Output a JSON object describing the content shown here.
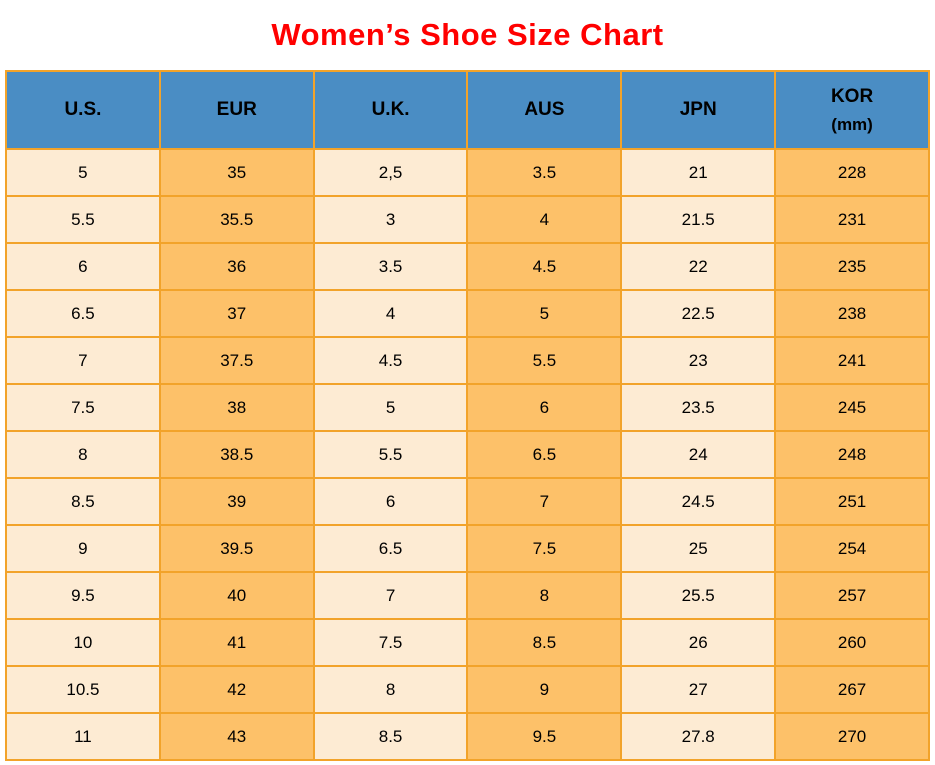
{
  "title": "Women’s Shoe Size Chart",
  "colors": {
    "title": "#ff0000",
    "header_bg": "#4a8dc4",
    "grid": "#f2a32a",
    "col_light": "#fdebd3",
    "col_dark": "#fdc169",
    "text": "#000000",
    "page_bg": "#ffffff"
  },
  "table": {
    "columns": [
      {
        "label": "U.S.",
        "sublabel": ""
      },
      {
        "label": "EUR",
        "sublabel": ""
      },
      {
        "label": "U.K.",
        "sublabel": ""
      },
      {
        "label": "AUS",
        "sublabel": ""
      },
      {
        "label": "JPN",
        "sublabel": ""
      },
      {
        "label": "KOR",
        "sublabel": "(mm)"
      }
    ],
    "rows": [
      [
        "5",
        "35",
        "2,5",
        "3.5",
        "21",
        "228"
      ],
      [
        "5.5",
        "35.5",
        "3",
        "4",
        "21.5",
        "231"
      ],
      [
        "6",
        "36",
        "3.5",
        "4.5",
        "22",
        "235"
      ],
      [
        "6.5",
        "37",
        "4",
        "5",
        "22.5",
        "238"
      ],
      [
        "7",
        "37.5",
        "4.5",
        "5.5",
        "23",
        "241"
      ],
      [
        "7.5",
        "38",
        "5",
        "6",
        "23.5",
        "245"
      ],
      [
        "8",
        "38.5",
        "5.5",
        "6.5",
        "24",
        "248"
      ],
      [
        "8.5",
        "39",
        "6",
        "7",
        "24.5",
        "251"
      ],
      [
        "9",
        "39.5",
        "6.5",
        "7.5",
        "25",
        "254"
      ],
      [
        "9.5",
        "40",
        "7",
        "8",
        "25.5",
        "257"
      ],
      [
        "10",
        "41",
        "7.5",
        "8.5",
        "26",
        "260"
      ],
      [
        "10.5",
        "42",
        "8",
        "9",
        "27",
        "267"
      ],
      [
        "11",
        "43",
        "8.5",
        "9.5",
        "27.8",
        "270"
      ]
    ]
  },
  "chart_data": {
    "type": "table",
    "title": "Women’s Shoe Size Chart",
    "columns": [
      "U.S.",
      "EUR",
      "U.K.",
      "AUS",
      "JPN",
      "KOR (mm)"
    ],
    "rows": [
      [
        "5",
        "35",
        "2,5",
        "3.5",
        "21",
        "228"
      ],
      [
        "5.5",
        "35.5",
        "3",
        "4",
        "21.5",
        "231"
      ],
      [
        "6",
        "36",
        "3.5",
        "4.5",
        "22",
        "235"
      ],
      [
        "6.5",
        "37",
        "4",
        "5",
        "22.5",
        "238"
      ],
      [
        "7",
        "37.5",
        "4.5",
        "5.5",
        "23",
        "241"
      ],
      [
        "7.5",
        "38",
        "5",
        "6",
        "23.5",
        "245"
      ],
      [
        "8",
        "38.5",
        "5.5",
        "6.5",
        "24",
        "248"
      ],
      [
        "8.5",
        "39",
        "6",
        "7",
        "24.5",
        "251"
      ],
      [
        "9",
        "39.5",
        "6.5",
        "7.5",
        "25",
        "254"
      ],
      [
        "9.5",
        "40",
        "7",
        "8",
        "25.5",
        "257"
      ],
      [
        "10",
        "41",
        "7.5",
        "8.5",
        "26",
        "260"
      ],
      [
        "10.5",
        "42",
        "8",
        "9",
        "27",
        "267"
      ],
      [
        "11",
        "43",
        "8.5",
        "9.5",
        "27.8",
        "270"
      ]
    ]
  }
}
